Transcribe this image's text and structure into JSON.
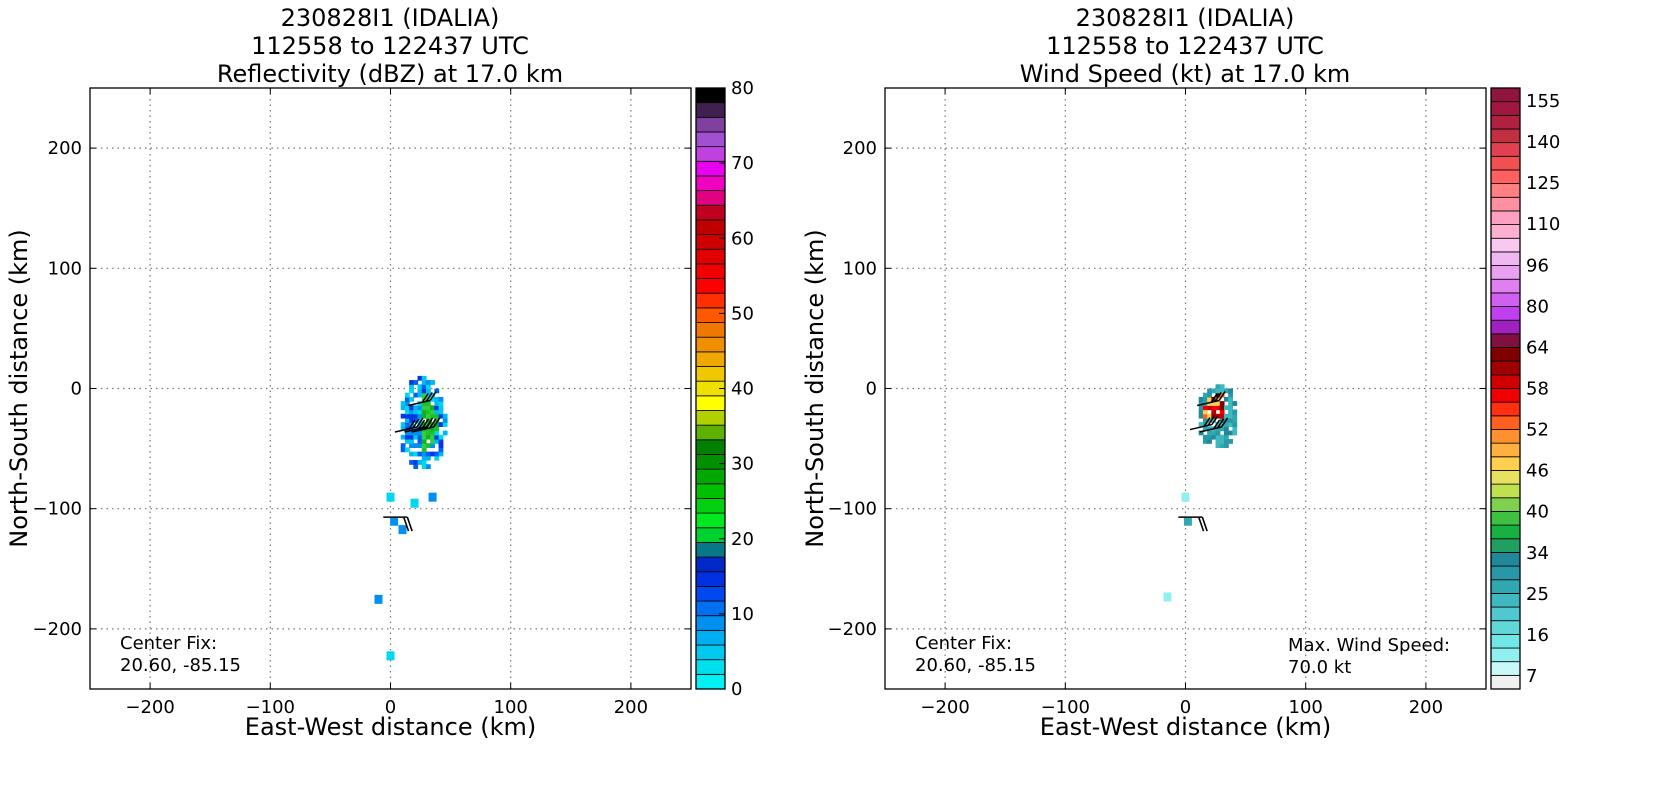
{
  "chart_data": [
    {
      "type": "heatmap",
      "title_lines": [
        "230828I1 (IDALIA)",
        "112558 to 122437 UTC",
        "Reflectivity (dBZ) at 17.0 km"
      ],
      "xlabel": "East-West distance (km)",
      "ylabel": "North-South distance (km)",
      "xlim": [
        -250,
        250
      ],
      "ylim": [
        -250,
        250
      ],
      "xticks": [
        -200,
        -100,
        0,
        100,
        200
      ],
      "yticks": [
        -200,
        -100,
        0,
        100,
        200
      ],
      "xtick_labels": [
        "−200",
        "−100",
        "0",
        "100",
        "200"
      ],
      "ytick_labels": [
        "−200",
        "−100",
        "0",
        "100",
        "200"
      ],
      "grid": true,
      "annotations": [
        {
          "lines": [
            "Center Fix:",
            "20.60, -85.15"
          ],
          "position": "bottom-left"
        }
      ],
      "colorbar": {
        "range": [
          0,
          80
        ],
        "tick_values": [
          0,
          10,
          20,
          30,
          40,
          50,
          60,
          70,
          80
        ],
        "tick_labels": [
          "0",
          "10",
          "20",
          "30",
          "40",
          "50",
          "60",
          "70",
          "80"
        ],
        "colors": [
          "#00f2f2",
          "#00dfee",
          "#00c8ee",
          "#00aef2",
          "#0090f0",
          "#0070f0",
          "#0048f0",
          "#0030e0",
          "#0028c8",
          "#087888",
          "#00d030",
          "#00e820",
          "#00d010",
          "#00c000",
          "#00a800",
          "#009000",
          "#008000",
          "#60b000",
          "#b0d000",
          "#ffff00",
          "#f0e000",
          "#f0c800",
          "#f0a800",
          "#f09000",
          "#f07800",
          "#ff5800",
          "#ff3000",
          "#ff0000",
          "#f00000",
          "#e00000",
          "#d00000",
          "#c00000",
          "#c00020",
          "#e00080",
          "#f000c0",
          "#e800f0",
          "#c040e0",
          "#a050d0",
          "#8040a0",
          "#402050",
          "#000000"
        ]
      },
      "echo_region": {
        "center_km": [
          25,
          -30
        ],
        "extent_km": [
          40,
          80
        ]
      },
      "scattered_echoes_km": [
        [
          3,
          -110
        ],
        [
          0,
          -90
        ],
        [
          -10,
          -175
        ],
        [
          0,
          -222
        ],
        [
          35,
          -90
        ],
        [
          20,
          -95
        ],
        [
          10,
          -117
        ]
      ]
    },
    {
      "type": "heatmap",
      "title_lines": [
        "230828I1 (IDALIA)",
        "112558 to 122437 UTC",
        "Wind Speed (kt) at 17.0 km"
      ],
      "xlabel": "East-West distance (km)",
      "ylabel": "North-South distance (km)",
      "xlim": [
        -250,
        250
      ],
      "ylim": [
        -250,
        250
      ],
      "xticks": [
        -200,
        -100,
        0,
        100,
        200
      ],
      "yticks": [
        -200,
        -100,
        0,
        100,
        200
      ],
      "xtick_labels": [
        "−200",
        "−100",
        "0",
        "100",
        "200"
      ],
      "ytick_labels": [
        "−200",
        "−100",
        "0",
        "100",
        "200"
      ],
      "grid": true,
      "annotations": [
        {
          "lines": [
            "Center Fix:",
            "20.60, -85.15"
          ],
          "position": "bottom-left"
        },
        {
          "lines": [
            "Max. Wind Speed:",
            "70.0 kt"
          ],
          "position": "bottom-right"
        }
      ],
      "colorbar": {
        "tick_labels": [
          "7",
          "16",
          "25",
          "34",
          "40",
          "46",
          "52",
          "58",
          "64",
          "80",
          "96",
          "110",
          "125",
          "140",
          "155"
        ],
        "colors": [
          "#f0f0f0",
          "#c8f8f8",
          "#90f0f0",
          "#70e8e8",
          "#60d8d8",
          "#50c8d0",
          "#40b8c0",
          "#30a8b0",
          "#2898a8",
          "#208898",
          "#20a060",
          "#18b040",
          "#40c040",
          "#80d050",
          "#c0e050",
          "#e8e060",
          "#ffd050",
          "#ffb040",
          "#ff9030",
          "#ff6020",
          "#ff3010",
          "#f00000",
          "#d00000",
          "#a00000",
          "#800000",
          "#801040",
          "#a020c0",
          "#c040f0",
          "#d060f0",
          "#e080f0",
          "#e8a0f0",
          "#f0b8f0",
          "#f8c8f0",
          "#ffb0d0",
          "#ffa0c0",
          "#ff90a0",
          "#ff8080",
          "#ff6060",
          "#f05050",
          "#e04050",
          "#c03040",
          "#b02040",
          "#a01840",
          "#901440"
        ]
      },
      "echo_region": {
        "center_km": [
          25,
          -25
        ],
        "extent_km": [
          35,
          55
        ]
      },
      "scattered_echoes_km": [
        [
          0,
          -90
        ],
        [
          2,
          -110
        ],
        [
          -15,
          -173
        ]
      ]
    }
  ]
}
